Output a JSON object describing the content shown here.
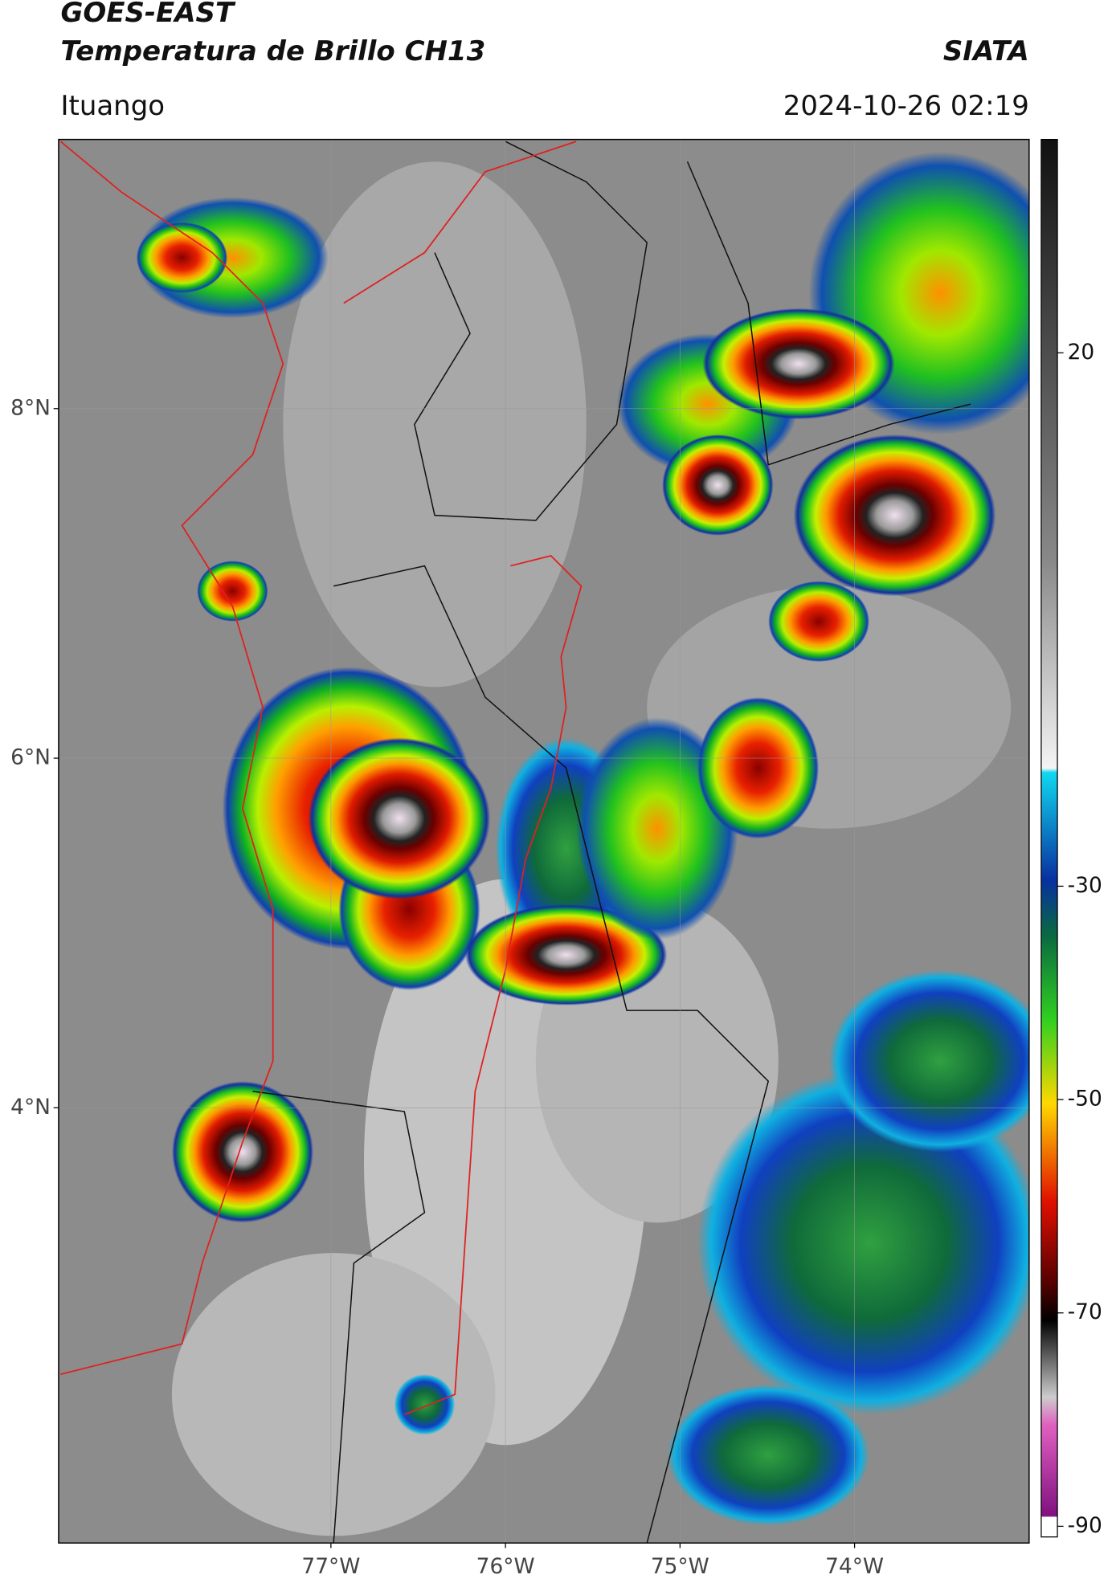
{
  "header": {
    "title_line1": "GOES-EAST",
    "title_line2": "Temperatura de Brillo CH13",
    "source": "SIATA",
    "region": "Ituango",
    "datetime": "2024-10-26 02:19"
  },
  "map": {
    "lon_lim": [
      -78.56,
      -73.0
    ],
    "lat_lim": [
      1.51,
      9.54
    ],
    "lon_ticks": [
      {
        "value": -77,
        "label": "77°W"
      },
      {
        "value": -76,
        "label": "76°W"
      },
      {
        "value": -75,
        "label": "75°W"
      },
      {
        "value": -74,
        "label": "74°W"
      }
    ],
    "lat_ticks": [
      {
        "value": 8,
        "label": "8°N"
      },
      {
        "value": 6,
        "label": "6°N"
      },
      {
        "value": 4,
        "label": "4°N"
      }
    ]
  },
  "colorbar": {
    "lim": [
      -91,
      40
    ],
    "ticks": [
      20,
      -30,
      -50,
      -70,
      -90
    ]
  }
}
